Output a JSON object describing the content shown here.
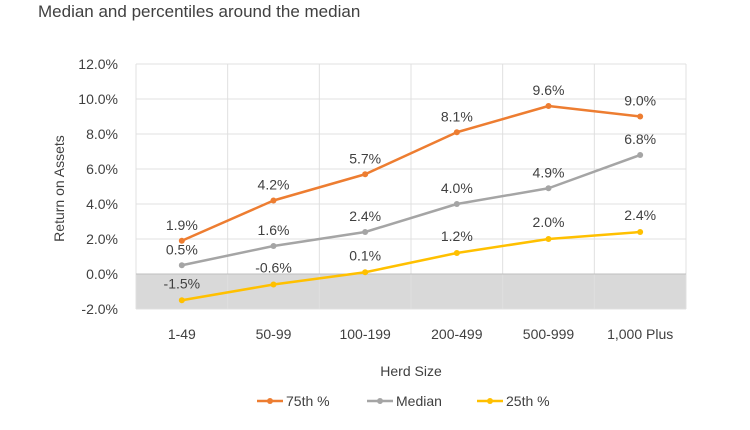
{
  "subtitle": "Median and percentiles around the median",
  "chart_data": {
    "type": "line",
    "categories": [
      "1-49",
      "50-99",
      "100-199",
      "200-499",
      "500-999",
      "1,000 Plus"
    ],
    "series": [
      {
        "name": "75th %",
        "color": "#ED7D31",
        "values": [
          1.9,
          4.2,
          5.7,
          8.1,
          9.6,
          9.0
        ],
        "labels": [
          "1.9%",
          "4.2%",
          "5.7%",
          "8.1%",
          "9.6%",
          "9.0%"
        ]
      },
      {
        "name": "Median",
        "color": "#A5A5A5",
        "values": [
          0.5,
          1.6,
          2.4,
          4.0,
          4.9,
          6.8
        ],
        "labels": [
          "0.5%",
          "1.6%",
          "2.4%",
          "4.0%",
          "4.9%",
          "6.8%"
        ]
      },
      {
        "name": "25th %",
        "color": "#FFC000",
        "values": [
          -1.5,
          -0.6,
          0.1,
          1.2,
          2.0,
          2.4
        ],
        "labels": [
          "-1.5%",
          "-0.6%",
          "0.1%",
          "1.2%",
          "2.0%",
          "2.4%"
        ]
      }
    ],
    "xlabel": "Herd Size",
    "ylabel": "Return on Assets",
    "ylim": [
      -2.0,
      12.0
    ],
    "yticks": [
      12.0,
      10.0,
      8.0,
      6.0,
      4.0,
      2.0,
      0.0,
      -2.0
    ],
    "ytick_labels": [
      "12.0%",
      "10.0%",
      "8.0%",
      "6.0%",
      "4.0%",
      "2.0%",
      "0.0%",
      "-2.0%"
    ],
    "grid": true,
    "negative_region_color": "#D9D9D9",
    "legend_position": "bottom"
  }
}
